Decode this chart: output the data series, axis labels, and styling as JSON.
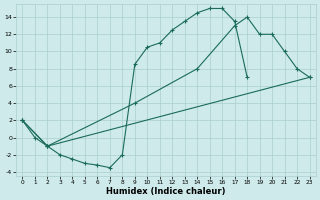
{
  "xlabel": "Humidex (Indice chaleur)",
  "background_color": "#ceeaea",
  "grid_color": "#aacece",
  "line_color": "#1a6b5a",
  "xlim": [
    -0.5,
    23.5
  ],
  "ylim": [
    -4.5,
    15.5
  ],
  "xticks": [
    0,
    1,
    2,
    3,
    4,
    5,
    6,
    7,
    8,
    9,
    10,
    11,
    12,
    13,
    14,
    15,
    16,
    17,
    18,
    19,
    20,
    21,
    22,
    23
  ],
  "yticks": [
    -4,
    -2,
    0,
    2,
    4,
    6,
    8,
    10,
    12,
    14
  ],
  "curve1_x": [
    0,
    1,
    2,
    3,
    4,
    5,
    6,
    7,
    8,
    9,
    10,
    11,
    12,
    13,
    14,
    15,
    16,
    17,
    18
  ],
  "curve1_y": [
    2,
    0,
    -1,
    -2,
    -2.5,
    -3,
    -3.2,
    -3.5,
    -2,
    8.5,
    10.5,
    11,
    12.5,
    13.5,
    14.5,
    15,
    15,
    13.5,
    7
  ],
  "curve2_x": [
    0,
    2,
    9,
    14,
    17,
    18,
    19,
    20,
    21,
    22,
    23
  ],
  "curve2_y": [
    2,
    -1,
    4,
    8,
    13,
    14,
    12,
    12,
    10,
    8,
    7
  ],
  "curve3_x": [
    0,
    2,
    23
  ],
  "curve3_y": [
    2,
    -1,
    7
  ]
}
